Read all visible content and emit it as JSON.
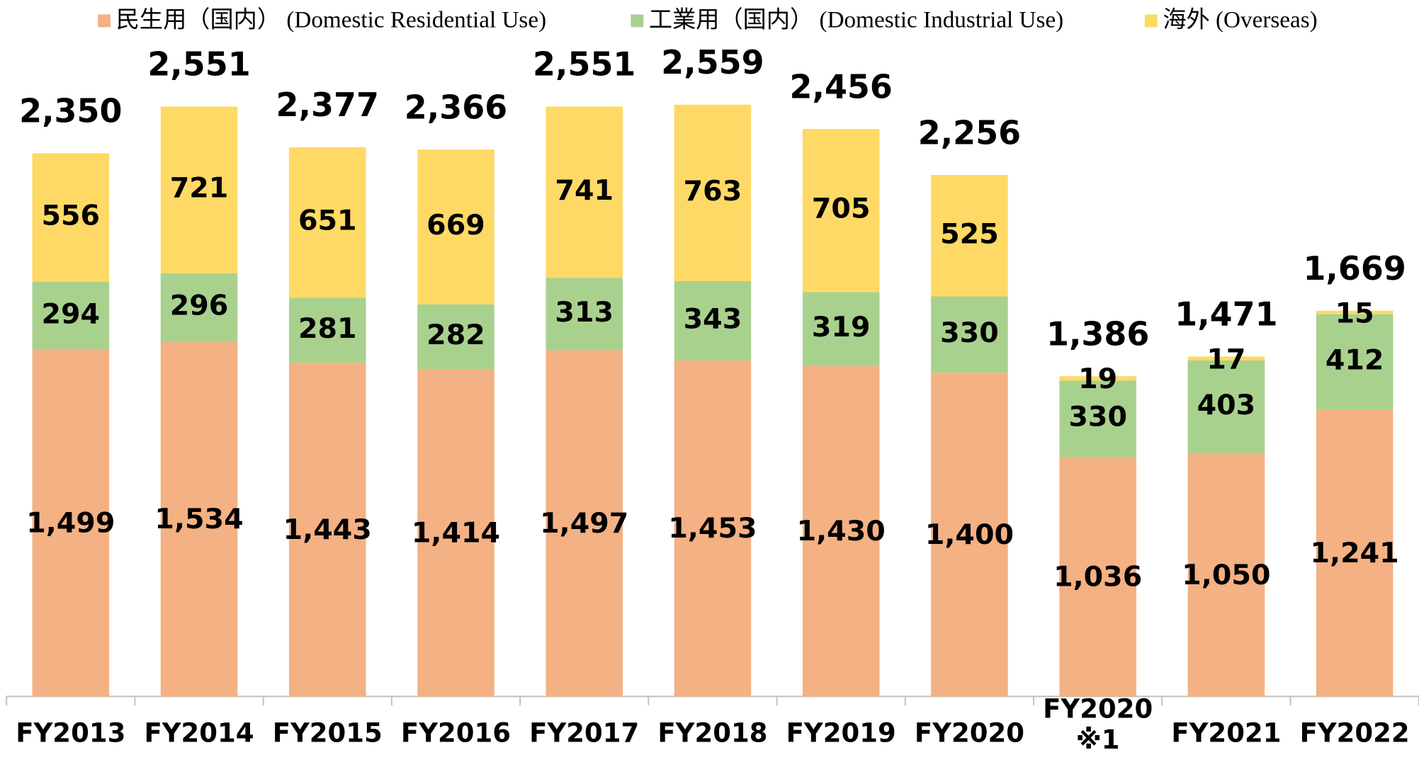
{
  "chart_data": {
    "type": "stacked_bar",
    "categories": [
      "FY2013",
      "FY2014",
      "FY2015",
      "FY2016",
      "FY2017",
      "FY2018",
      "FY2019",
      "FY2020",
      "FY2020\n※1",
      "FY2021",
      "FY2022"
    ],
    "series": [
      {
        "name": "民生用（国内） (Domestic Residential Use)",
        "color": "#f4b183",
        "values": [
          1499,
          1534,
          1443,
          1414,
          1497,
          1453,
          1430,
          1400,
          1036,
          1050,
          1241
        ],
        "value_labels": [
          "1,499",
          "1,534",
          "1,443",
          "1,414",
          "1,497",
          "1,453",
          "1,430",
          "1,400",
          "1,036",
          "1,050",
          "1,241"
        ]
      },
      {
        "name": "工業用（国内） (Domestic Industrial Use)",
        "color": "#a9d18e",
        "values": [
          294,
          296,
          281,
          282,
          313,
          343,
          319,
          330,
          330,
          403,
          412
        ]
      },
      {
        "name": "海外 (Overseas)",
        "color": "#ffd966",
        "values": [
          556,
          721,
          651,
          669,
          741,
          763,
          705,
          525,
          19,
          17,
          15
        ]
      }
    ],
    "totals": [
      2350,
      2551,
      2377,
      2366,
      2551,
      2559,
      2456,
      2256,
      1386,
      1471,
      1669
    ],
    "total_labels": [
      "2,350",
      "2,551",
      "2,377",
      "2,366",
      "2,551",
      "2,559",
      "2,456",
      "2,256",
      "1,386",
      "1,471",
      "1,669"
    ],
    "ylim": [
      0,
      3000
    ],
    "legend": "top"
  }
}
